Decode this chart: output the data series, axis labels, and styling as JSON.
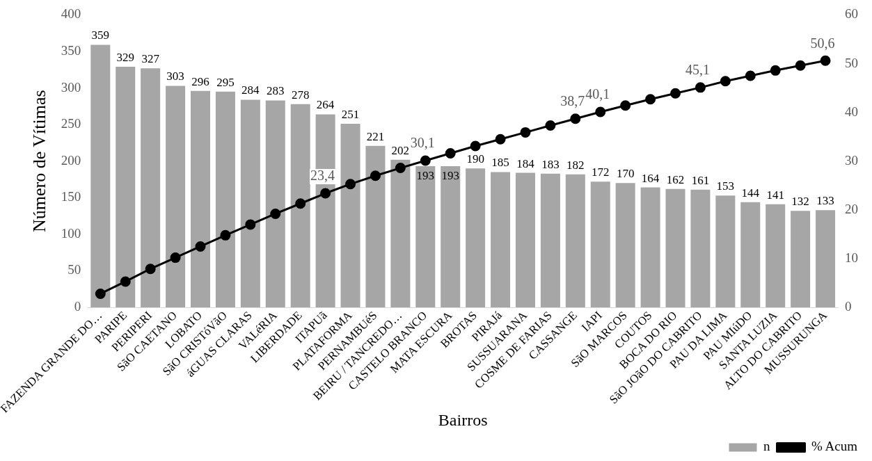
{
  "chart_data": {
    "type": "bar",
    "xlabel": "Bairros",
    "ylabel": "Número de Vítimas",
    "categories": [
      "FAZENDA GRANDE DO…",
      "PARIPE",
      "PERIPERI",
      "SãO CAETANO",
      "LOBATO",
      "SãO CRISTóVãO",
      "áGUAS CLARAS",
      "VALéRIA",
      "LIBERDADE",
      "ITAPUã",
      "PLATAFORMA",
      "PERNAMBUéS",
      "BEIRU / TANCREDO…",
      "CASTELO BRANCO",
      "MATA ESCURA",
      "BROTAS",
      "PIRAJá",
      "SUSSUARANA",
      "COSME DE FARIAS",
      "CASSANGE",
      "IAPI",
      "SãO MARCOS",
      "COUTOS",
      "BOCA DO RIO",
      "SãO JOãO DO CABRITO",
      "PAU DA LIMA",
      "PAU MIúDO",
      "SANTA LUZIA",
      "ALTO DO CABRITO",
      "MUSSURUNGA"
    ],
    "series": [
      {
        "name": "n",
        "color": "#a6a6a6",
        "values": [
          359,
          329,
          327,
          303,
          296,
          295,
          284,
          283,
          278,
          264,
          251,
          221,
          202,
          193,
          193,
          190,
          185,
          184,
          183,
          182,
          172,
          170,
          164,
          162,
          161,
          153,
          144,
          141,
          132,
          133
        ],
        "value_labels": [
          "359",
          "329",
          "327",
          "303",
          "296",
          "295",
          "284",
          "283",
          "278",
          "264",
          "251",
          "221",
          "202",
          "193",
          "193",
          "190",
          "185",
          "184",
          "183",
          "182",
          "172",
          "170",
          "164",
          "162",
          "161",
          "153",
          "144",
          "141",
          "132",
          "133"
        ]
      },
      {
        "name": "% Acum",
        "type": "line",
        "axis": "y2",
        "color": "#000000",
        "marker": "circle",
        "values": [
          2.8,
          5.3,
          7.9,
          10.2,
          12.5,
          14.8,
          17.0,
          19.2,
          21.3,
          23.4,
          25.3,
          27.0,
          28.6,
          30.1,
          31.6,
          33.1,
          34.5,
          35.9,
          37.3,
          38.7,
          40.1,
          41.4,
          42.7,
          43.9,
          45.1,
          46.4,
          47.5,
          48.6,
          49.6,
          50.6
        ],
        "value_labels": [
          null,
          null,
          null,
          null,
          null,
          null,
          null,
          null,
          null,
          "23,4",
          null,
          null,
          null,
          "30,1",
          null,
          null,
          null,
          null,
          null,
          "38,7",
          "40,1",
          null,
          null,
          null,
          "45,1",
          null,
          null,
          null,
          null,
          "50,6"
        ]
      }
    ],
    "ylim": [
      0,
      400
    ],
    "yticks": [
      0,
      50,
      100,
      150,
      200,
      250,
      300,
      350,
      400
    ],
    "y2lim": [
      0,
      60
    ],
    "y2ticks": [
      0,
      10,
      20,
      30,
      40,
      50,
      60
    ],
    "grid": false,
    "legend": "bottom right"
  }
}
